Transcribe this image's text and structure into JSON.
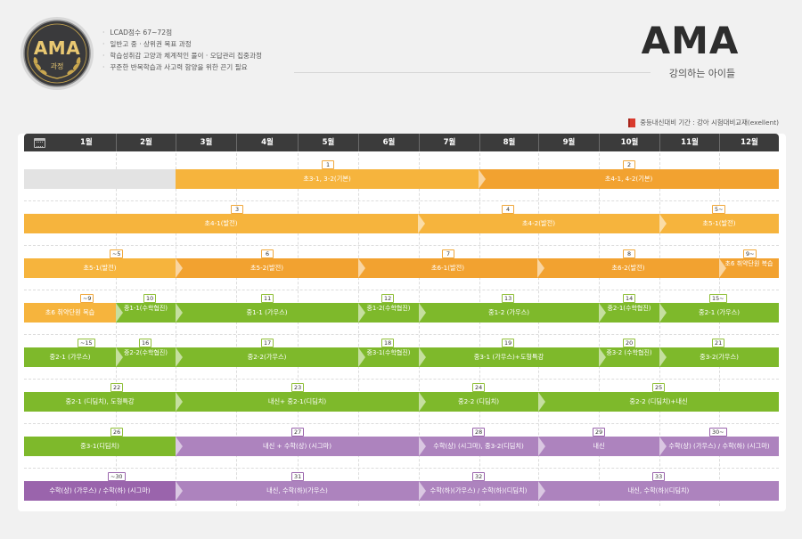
{
  "badge": {
    "title": "AMA",
    "subtitle": "과정"
  },
  "bullets": [
    "LCAD점수 67~72점",
    "일반고 중 · 상위권 목표 과정",
    "학습성취감 고양과 체계적인 풀이 · 오답관리 집중과정",
    "꾸준한 반복학습과 사고력 함양을 위한 끈기 필요"
  ],
  "brand": {
    "title": "AMA",
    "subtitle": "강의하는 아이들"
  },
  "period_note": "중등내신대비 기간 : 강아 시험대비교재(exellent)",
  "months": [
    "1월",
    "2월",
    "3월",
    "4월",
    "5월",
    "6월",
    "7월",
    "8월",
    "9월",
    "10월",
    "11월",
    "12월"
  ],
  "rows": [
    {
      "bars": [
        {
          "num": "1",
          "label": "초3-1, 3-2(기본)",
          "color": "yellow"
        },
        {
          "num": "2",
          "label": "초4-1, 4-2(기본)",
          "color": "orange"
        }
      ]
    },
    {
      "bars": [
        {
          "num": "3",
          "label": "초4-1(발전)",
          "color": "yellow"
        },
        {
          "num": "4",
          "label": "초4-2(발전)",
          "color": "yellow"
        },
        {
          "num": "5~",
          "label": "초5-1(발전)",
          "color": "yellow"
        }
      ]
    },
    {
      "bars": [
        {
          "num": "~5",
          "label": "초5-1(발전)",
          "color": "yellow"
        },
        {
          "num": "6",
          "label": "초5-2(발전)",
          "color": "orange"
        },
        {
          "num": "7",
          "label": "초6-1(발전)",
          "color": "orange"
        },
        {
          "num": "8",
          "label": "초6-2(발전)",
          "color": "orange"
        },
        {
          "num": "9~",
          "label": "초6 취약단원 복습",
          "color": "orange"
        }
      ]
    },
    {
      "bars": [
        {
          "num": "~9",
          "label": "초6 취약단원 복습",
          "color": "yellow"
        },
        {
          "num": "10",
          "label": "중1-1(수학협진)",
          "color": "green"
        },
        {
          "num": "11",
          "label": "중1-1 (가우스)",
          "color": "green"
        },
        {
          "num": "12",
          "label": "중1-2(수학협진)",
          "color": "green"
        },
        {
          "num": "13",
          "label": "중1-2 (가우스)",
          "color": "green"
        },
        {
          "num": "14",
          "label": "중2-1(수학협진)",
          "color": "green"
        },
        {
          "num": "15~",
          "label": "중2-1 (가우스)",
          "color": "green"
        }
      ]
    },
    {
      "bars": [
        {
          "num": "~15",
          "label": "중2-1 (가우스)",
          "color": "green"
        },
        {
          "num": "16",
          "label": "중2-2(수학협진)",
          "color": "green"
        },
        {
          "num": "17",
          "label": "중2-2(가우스)",
          "color": "green"
        },
        {
          "num": "18",
          "label": "중3-1(수학협진)",
          "color": "green"
        },
        {
          "num": "19",
          "label": "중3-1 (가우스)+도형특강",
          "color": "green"
        },
        {
          "num": "20",
          "label": "중3-2 (수학협진)",
          "color": "green"
        },
        {
          "num": "21",
          "label": "중3-2(가우스)",
          "color": "green"
        }
      ]
    },
    {
      "bars": [
        {
          "num": "22",
          "label": "중2-1 (디딤치), 도형특강",
          "color": "green"
        },
        {
          "num": "23",
          "label": "내신+ 중2-1(디딤치)",
          "color": "green"
        },
        {
          "num": "24",
          "label": "중2-2 (디딤치)",
          "color": "green"
        },
        {
          "num": "25",
          "label": "중2-2 (디딤치)+내신",
          "color": "green"
        }
      ]
    },
    {
      "bars": [
        {
          "num": "26",
          "label": "중3-1(디딤치)",
          "color": "green"
        },
        {
          "num": "27",
          "label": "내신 + 수학(상) (시그마)",
          "color": "violet"
        },
        {
          "num": "28",
          "label": "수학(상) (시그마), 중3-2(디딤치)",
          "color": "violet"
        },
        {
          "num": "29",
          "label": "내신",
          "color": "violet"
        },
        {
          "num": "30~",
          "label": "수학(상) (가우스) / 수학(하) (시그마)",
          "color": "violet"
        }
      ]
    },
    {
      "bars": [
        {
          "num": "~30",
          "label": "수학(상) (가우스) / 수학(하) (시그마)",
          "color": "purple"
        },
        {
          "num": "31",
          "label": "내신, 수학(하)(가우스)",
          "color": "violet"
        },
        {
          "num": "32",
          "label": "수학(하)(가우스) / 수학(하)(디딤치)",
          "color": "violet"
        },
        {
          "num": "33",
          "label": "내신, 수학(하)(디딤치)",
          "color": "violet"
        }
      ]
    }
  ]
}
